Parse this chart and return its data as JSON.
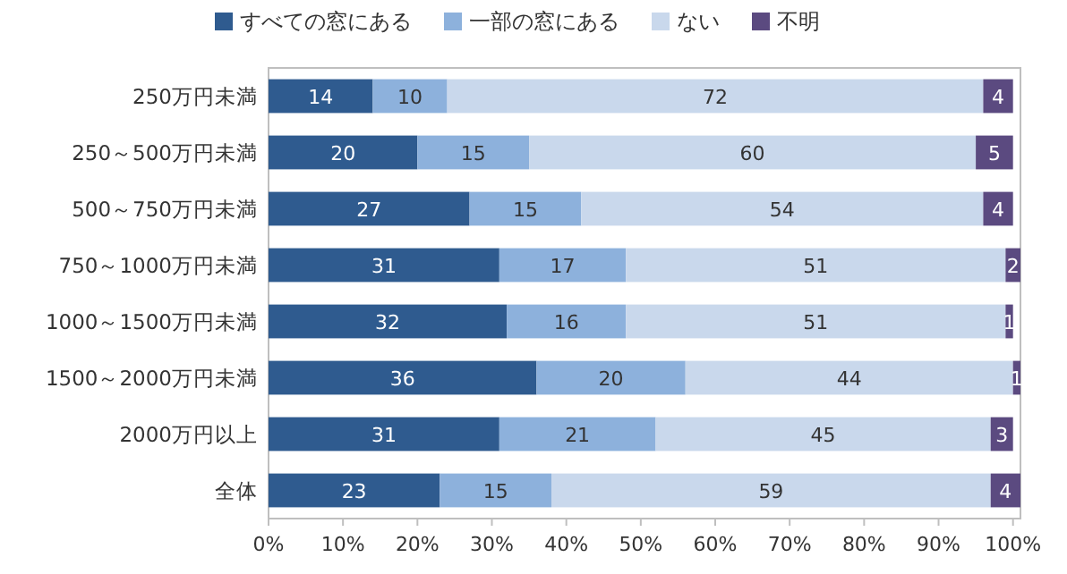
{
  "chart_data": {
    "type": "bar",
    "orientation": "horizontal",
    "stacked": true,
    "data_labels": true,
    "legend": "top",
    "grid": false,
    "categories": [
      "250万円未満",
      "250～500万円未満",
      "500～750万円未満",
      "750～1000万円未満",
      "1000～1500万円未満",
      "1500～2000万円未満",
      "2000万円以上",
      "全体"
    ],
    "series": [
      {
        "name": "すべての窓にある",
        "color": "#2f5b8f",
        "values": [
          14,
          20,
          27,
          31,
          32,
          36,
          31,
          23
        ]
      },
      {
        "name": "一部の窓にある",
        "color": "#8db1dc",
        "values": [
          10,
          15,
          15,
          17,
          16,
          20,
          21,
          15
        ]
      },
      {
        "name": "ない",
        "color": "#c9d8ec",
        "values": [
          72,
          60,
          54,
          51,
          51,
          44,
          45,
          59
        ]
      },
      {
        "name": "不明",
        "color": "#5b4a80",
        "values": [
          4,
          5,
          4,
          2,
          1,
          1,
          3,
          4
        ]
      }
    ],
    "xlim": [
      0,
      101
    ],
    "xticks": [
      {
        "value": 0,
        "label": "0%"
      },
      {
        "value": 10,
        "label": "10%"
      },
      {
        "value": 20,
        "label": "20%"
      },
      {
        "value": 30,
        "label": "30%"
      },
      {
        "value": 40,
        "label": "40%"
      },
      {
        "value": 50,
        "label": "50%"
      },
      {
        "value": 60,
        "label": "60%"
      },
      {
        "value": 70,
        "label": "70%"
      },
      {
        "value": 80,
        "label": "80%"
      },
      {
        "value": 90,
        "label": "90%"
      },
      {
        "value": 100,
        "label": "100%"
      }
    ]
  }
}
